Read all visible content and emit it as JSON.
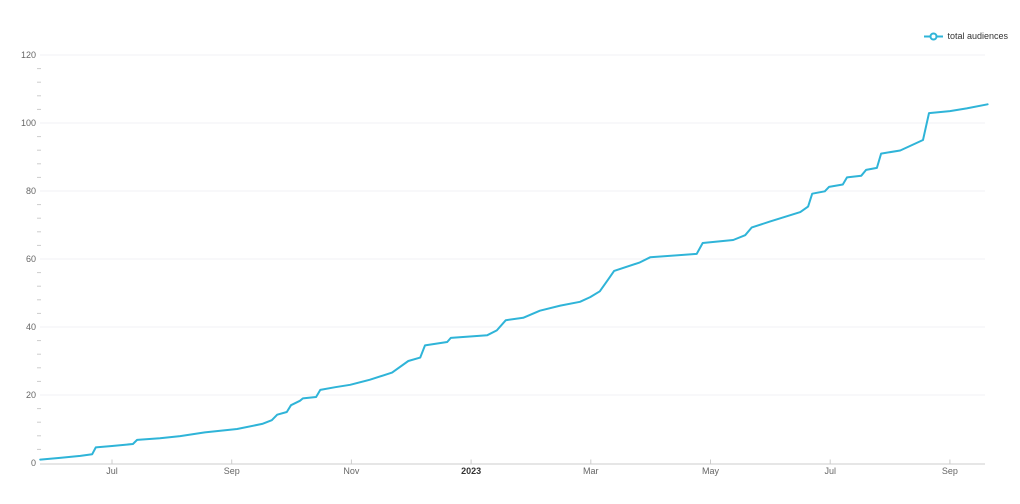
{
  "legend": {
    "label": "total audiences"
  },
  "colors": {
    "series": "#2fb4d8",
    "grid": "#f1f2f6",
    "axis_line": "#cccccc",
    "tick": "#cccccc",
    "minor_tick": "#cccccc",
    "label": "#666666",
    "year_label": "#333333",
    "background": "#ffffff"
  },
  "chart_data": {
    "type": "line",
    "title": "",
    "xlabel": "",
    "ylabel": "",
    "legend_position": "top-right",
    "grid": "horizontal-only",
    "y_axis": {
      "min": 0,
      "max": 120,
      "major_step": 20,
      "minor_step": 4,
      "tick_labels": [
        "0",
        "20",
        "40",
        "60",
        "80",
        "100",
        "120"
      ]
    },
    "x_axis": {
      "unit": "month-index (1 = Jul 2022, 7 = Jan 2023, 15 = Sep 2023)",
      "range": [
        -0.2,
        15.63
      ],
      "ticks": [
        {
          "m": 1,
          "label": "Jul",
          "bold": false
        },
        {
          "m": 3,
          "label": "Sep",
          "bold": false
        },
        {
          "m": 5,
          "label": "Nov",
          "bold": false
        },
        {
          "m": 7,
          "label": "2023",
          "bold": true
        },
        {
          "m": 9,
          "label": "Mar",
          "bold": false
        },
        {
          "m": 11,
          "label": "May",
          "bold": false
        },
        {
          "m": 13,
          "label": "Jul",
          "bold": false
        },
        {
          "m": 15,
          "label": "Sep",
          "bold": false
        }
      ]
    },
    "series": [
      {
        "name": "total audiences",
        "points": [
          [
            -0.2,
            1.0
          ],
          [
            0.13,
            1.5
          ],
          [
            0.47,
            2.1
          ],
          [
            0.67,
            2.6
          ],
          [
            0.73,
            4.6
          ],
          [
            1.0,
            5.0
          ],
          [
            1.35,
            5.6
          ],
          [
            1.42,
            6.8
          ],
          [
            1.8,
            7.3
          ],
          [
            2.14,
            7.9
          ],
          [
            2.55,
            9.0
          ],
          [
            3.09,
            10.0
          ],
          [
            3.51,
            11.5
          ],
          [
            3.67,
            12.6
          ],
          [
            3.76,
            14.2
          ],
          [
            3.92,
            15.0
          ],
          [
            3.99,
            17.0
          ],
          [
            4.14,
            18.3
          ],
          [
            4.19,
            19.0
          ],
          [
            4.41,
            19.4
          ],
          [
            4.48,
            21.5
          ],
          [
            4.73,
            22.3
          ],
          [
            4.98,
            23.0
          ],
          [
            5.31,
            24.5
          ],
          [
            5.68,
            26.6
          ],
          [
            5.95,
            30.0
          ],
          [
            6.15,
            31.0
          ],
          [
            6.23,
            34.6
          ],
          [
            6.6,
            35.6
          ],
          [
            6.66,
            36.8
          ],
          [
            7.27,
            37.6
          ],
          [
            7.43,
            39.0
          ],
          [
            7.58,
            42.0
          ],
          [
            7.87,
            42.7
          ],
          [
            8.15,
            44.8
          ],
          [
            8.49,
            46.3
          ],
          [
            8.82,
            47.4
          ],
          [
            8.99,
            48.8
          ],
          [
            9.15,
            50.5
          ],
          [
            9.29,
            54.0
          ],
          [
            9.39,
            56.5
          ],
          [
            9.82,
            59.0
          ],
          [
            9.99,
            60.5
          ],
          [
            10.77,
            61.5
          ],
          [
            10.87,
            64.7
          ],
          [
            11.38,
            65.6
          ],
          [
            11.58,
            67.0
          ],
          [
            11.69,
            69.3
          ],
          [
            11.99,
            71.0
          ],
          [
            12.5,
            73.8
          ],
          [
            12.63,
            75.4
          ],
          [
            12.7,
            79.2
          ],
          [
            12.91,
            79.9
          ],
          [
            12.98,
            81.2
          ],
          [
            13.21,
            81.9
          ],
          [
            13.28,
            84.0
          ],
          [
            13.52,
            84.5
          ],
          [
            13.6,
            86.2
          ],
          [
            13.78,
            86.8
          ],
          [
            13.85,
            91.0
          ],
          [
            14.17,
            91.9
          ],
          [
            14.55,
            95.0
          ],
          [
            14.65,
            102.9
          ],
          [
            15.0,
            103.5
          ],
          [
            15.28,
            104.3
          ],
          [
            15.63,
            105.5
          ]
        ]
      }
    ]
  }
}
